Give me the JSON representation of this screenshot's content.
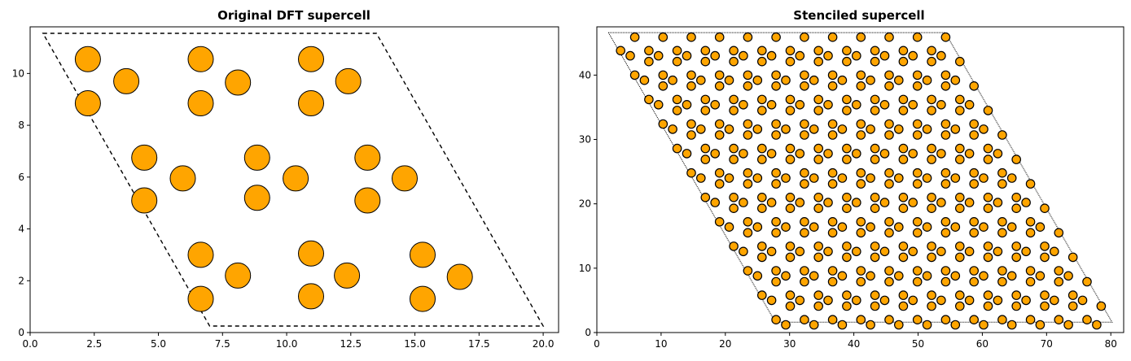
{
  "chart_data": [
    {
      "type": "scatter",
      "title": "Original DFT supercell",
      "xlabel": "",
      "ylabel": "",
      "xlim": [
        0,
        20.6
      ],
      "ylim": [
        0,
        11.8
      ],
      "xticks": [
        0.0,
        2.5,
        5.0,
        7.5,
        10.0,
        12.5,
        15.0,
        17.5,
        20.0
      ],
      "xtick_labels": [
        "0.0",
        "2.5",
        "5.0",
        "7.5",
        "10.0",
        "12.5",
        "15.0",
        "17.5",
        "20.0"
      ],
      "yticks": [
        0,
        2,
        4,
        6,
        8,
        10
      ],
      "ytick_labels": [
        "0",
        "2",
        "4",
        "6",
        "8",
        "10"
      ],
      "grid": false,
      "legend": "none",
      "marker_color": "#ffa500",
      "marker_edge": "#000000",
      "cell_outline": [
        [
          0.5,
          11.55
        ],
        [
          13.5,
          11.55
        ],
        [
          20.0,
          0.25
        ],
        [
          7.0,
          0.25
        ]
      ],
      "points": [
        [
          2.25,
          10.55
        ],
        [
          6.65,
          10.55
        ],
        [
          10.95,
          10.55
        ],
        [
          3.75,
          9.7
        ],
        [
          8.1,
          9.65
        ],
        [
          12.4,
          9.7
        ],
        [
          2.25,
          8.85
        ],
        [
          6.65,
          8.85
        ],
        [
          10.95,
          8.85
        ],
        [
          4.45,
          6.75
        ],
        [
          8.85,
          6.75
        ],
        [
          13.15,
          6.75
        ],
        [
          5.95,
          5.95
        ],
        [
          10.35,
          5.95
        ],
        [
          14.6,
          5.95
        ],
        [
          4.45,
          5.1
        ],
        [
          8.85,
          5.2
        ],
        [
          13.15,
          5.1
        ],
        [
          6.65,
          3.0
        ],
        [
          10.95,
          3.05
        ],
        [
          15.3,
          3.0
        ],
        [
          8.1,
          2.2
        ],
        [
          12.35,
          2.2
        ],
        [
          16.75,
          2.15
        ],
        [
          6.65,
          1.3
        ],
        [
          10.95,
          1.4
        ],
        [
          15.3,
          1.3
        ]
      ]
    },
    {
      "type": "scatter",
      "title": "Stenciled supercell",
      "xlabel": "",
      "ylabel": "",
      "xlim": [
        0,
        82
      ],
      "ylim": [
        0,
        47.5
      ],
      "xticks": [
        0,
        10,
        20,
        30,
        40,
        50,
        60,
        70,
        80
      ],
      "xtick_labels": [
        "0",
        "10",
        "20",
        "30",
        "40",
        "50",
        "60",
        "70",
        "80"
      ],
      "yticks": [
        0,
        10,
        20,
        30,
        40
      ],
      "ytick_labels": [
        "0",
        "10",
        "20",
        "30",
        "40"
      ],
      "grid": false,
      "legend": "none",
      "marker_color": "#ffa500",
      "marker_edge": "#000000",
      "cell_outline": [
        [
          1.8,
          46.6
        ],
        [
          54.2,
          46.6
        ],
        [
          80.2,
          1.6
        ],
        [
          27.8,
          1.6
        ]
      ],
      "lattice_basis": [
        [
          4.4,
          0
        ],
        [
          2.2,
          -3.8
        ]
      ],
      "motif_offsets": [
        [
          3.7,
          43.8
        ],
        [
          5.2,
          43.0
        ],
        [
          5.9,
          45.9
        ]
      ],
      "lattice_range": {
        "i": [
          -12,
          26
        ],
        "j": [
          0,
          12
        ]
      }
    }
  ]
}
